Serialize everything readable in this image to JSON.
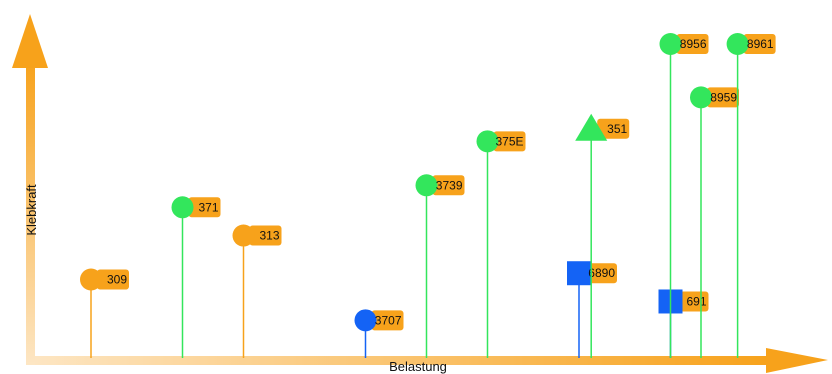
{
  "chart_data": {
    "type": "scatter",
    "style": "lollipop",
    "xlabel": "Belastung",
    "ylabel": "Klebkraft",
    "grid": false,
    "legend": "none",
    "colors": {
      "orange": "#f7a21b",
      "green": "#33e65c",
      "blue": "#1463f5"
    },
    "points": [
      {
        "label": "309",
        "x": 1.0,
        "y": 2.5,
        "color": "orange",
        "marker": "circle"
      },
      {
        "label": "371",
        "x": 2.5,
        "y": 4.8,
        "color": "green",
        "marker": "circle"
      },
      {
        "label": "313",
        "x": 3.5,
        "y": 3.9,
        "color": "orange",
        "marker": "circle"
      },
      {
        "label": "3707",
        "x": 5.5,
        "y": 1.2,
        "color": "blue",
        "marker": "circle"
      },
      {
        "label": "3739",
        "x": 6.5,
        "y": 5.5,
        "color": "green",
        "marker": "circle"
      },
      {
        "label": "375E",
        "x": 7.5,
        "y": 6.9,
        "color": "green",
        "marker": "circle"
      },
      {
        "label": "6890",
        "x": 9.0,
        "y": 2.7,
        "color": "blue",
        "marker": "square"
      },
      {
        "label": "351",
        "x": 9.2,
        "y": 7.3,
        "color": "green",
        "marker": "triangle"
      },
      {
        "label": "691",
        "x": 10.5,
        "y": 1.8,
        "color": "blue",
        "marker": "square"
      },
      {
        "label": "8956",
        "x": 10.5,
        "y": 10.0,
        "color": "green",
        "marker": "circle"
      },
      {
        "label": "8959",
        "x": 11.0,
        "y": 8.3,
        "color": "green",
        "marker": "circle"
      },
      {
        "label": "8961",
        "x": 11.6,
        "y": 10.0,
        "color": "green",
        "marker": "circle"
      }
    ]
  }
}
